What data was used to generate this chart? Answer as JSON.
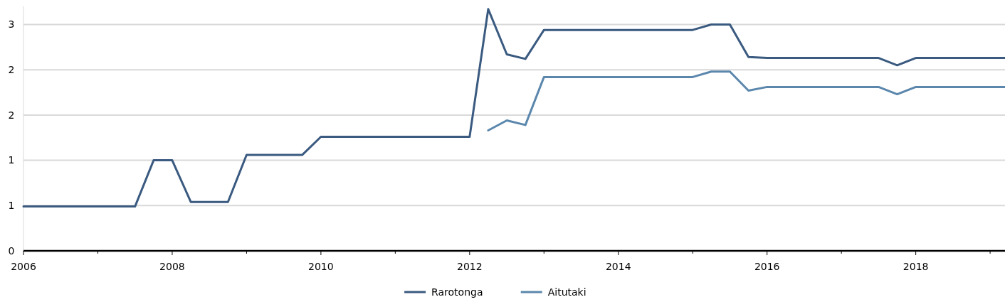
{
  "chart_data": {
    "type": "line",
    "x": [
      2006,
      2006.25,
      2006.5,
      2006.75,
      2007,
      2007.25,
      2007.5,
      2007.75,
      2008,
      2008.25,
      2008.5,
      2008.75,
      2009,
      2009.25,
      2009.5,
      2009.75,
      2010,
      2010.25,
      2010.5,
      2010.75,
      2011,
      2011.25,
      2011.5,
      2011.75,
      2012,
      2012.25,
      2012.5,
      2012.75,
      2013,
      2013.25,
      2013.5,
      2013.75,
      2014,
      2014.25,
      2014.5,
      2014.75,
      2015,
      2015.25,
      2015.5,
      2015.75,
      2016,
      2016.25,
      2016.5,
      2016.75,
      2017,
      2017.25,
      2017.5,
      2017.75,
      2018,
      2018.25,
      2018.5,
      2018.75,
      2019,
      2019.2
    ],
    "series": [
      {
        "name": "Rarotonga",
        "color": "#3a5a80",
        "values": [
          0.49,
          0.49,
          0.49,
          0.49,
          0.49,
          0.49,
          0.49,
          1.0,
          1.0,
          0.54,
          0.54,
          0.54,
          1.06,
          1.06,
          1.06,
          1.06,
          1.26,
          1.26,
          1.26,
          1.26,
          1.26,
          1.26,
          1.26,
          1.26,
          1.26,
          2.67,
          2.17,
          2.12,
          2.44,
          2.44,
          2.44,
          2.44,
          2.44,
          2.44,
          2.44,
          2.44,
          2.44,
          2.5,
          2.5,
          2.14,
          2.13,
          2.13,
          2.13,
          2.13,
          2.13,
          2.13,
          2.13,
          2.05,
          2.13,
          2.13,
          2.13,
          2.13,
          2.13,
          2.13
        ]
      },
      {
        "name": "Aitutaki",
        "color": "#5b87ad",
        "values": [
          null,
          null,
          null,
          null,
          null,
          null,
          null,
          null,
          null,
          null,
          null,
          null,
          null,
          null,
          null,
          null,
          null,
          null,
          null,
          null,
          null,
          null,
          null,
          null,
          null,
          1.33,
          1.44,
          1.39,
          1.92,
          1.92,
          1.92,
          1.92,
          1.92,
          1.92,
          1.92,
          1.92,
          1.92,
          1.98,
          1.98,
          1.77,
          1.81,
          1.81,
          1.81,
          1.81,
          1.81,
          1.81,
          1.81,
          1.73,
          1.81,
          1.81,
          1.81,
          1.81,
          1.81,
          1.81
        ]
      }
    ],
    "xlim": [
      2006,
      2019.2
    ],
    "xticks": [
      2006,
      {
        "value": 2007,
        "label": null
      },
      2008,
      {
        "value": 2009,
        "label": null
      },
      2010,
      {
        "value": 2011,
        "label": null
      },
      2012,
      {
        "value": 2013,
        "label": null
      },
      2014,
      {
        "value": 2015,
        "label": null
      },
      2016,
      {
        "value": 2017,
        "label": null
      },
      2018,
      {
        "value": 2019,
        "label": null
      }
    ],
    "ylim": [
      0,
      2.7
    ],
    "yticks": [
      0,
      {
        "value": 0.5,
        "label": "1"
      },
      1,
      {
        "value": 1.5,
        "label": "2"
      },
      2,
      {
        "value": 2.5,
        "label": "3"
      }
    ],
    "grid": "y",
    "legend": "bottom",
    "line_style": "solid"
  }
}
